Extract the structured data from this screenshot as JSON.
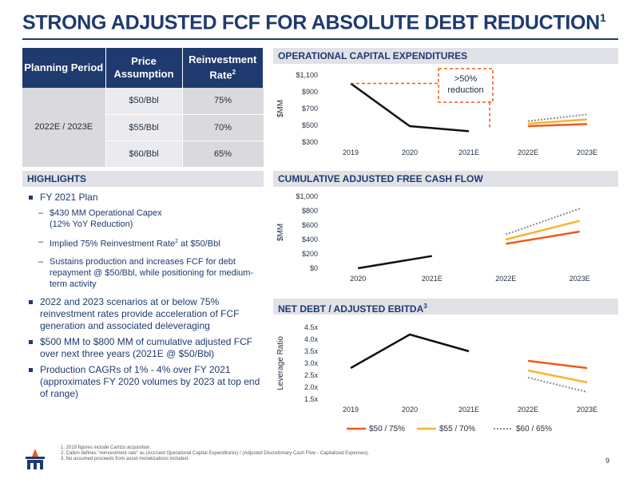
{
  "title": "STRONG ADJUSTED FCF FOR ABSOLUTE DEBT REDUCTION",
  "title_footnote": "1",
  "table": {
    "headers": [
      "Planning Period",
      "Price Assumption",
      "Reinvestment Rate"
    ],
    "rate_footnote": "2",
    "period": "2022E / 2023E",
    "rows": [
      {
        "price": "$50/Bbl",
        "rate": "75%"
      },
      {
        "price": "$55/Bbl",
        "rate": "70%"
      },
      {
        "price": "$60/Bbl",
        "rate": "65%"
      }
    ]
  },
  "highlights": {
    "heading": "HIGHLIGHTS",
    "b1": "FY 2021 Plan",
    "s1": "$430 MM Operational Capex",
    "s1b": "(12% YoY Reduction)",
    "s2a": "Implied 75% Reinvestment Rate",
    "s2sup": "2",
    "s2b": " at $50/Bbl",
    "s3": "Sustains production and increases FCF for debt repayment @ $50/Bbl, while positioning for medium-term activity",
    "b2": "2022 and 2023 scenarios at or below 75% reinvestment rates provide acceleration of FCF generation and associated deleveraging",
    "b3": "$500 MM to $800 MM of cumulative adjusted FCF over next three years (2021E @ $50/Bbl)",
    "b4": "Production CAGRs of 1% - 4% over FY 2021 (approximates FY 2020 volumes by 2023 at top end of range)"
  },
  "colors": {
    "navy": "#1f3a6e",
    "actual": "#111111",
    "s50": "#f05a1a",
    "s55": "#f9b233",
    "s60": "#8c8c8c",
    "annotation": "#f05a1a"
  },
  "chart_data": [
    {
      "type": "line",
      "title": "OPERATIONAL CAPITAL EXPENDITURES",
      "ylabel": "$MM",
      "categories": [
        "2019",
        "2020",
        "2021E",
        "2022E",
        "2023E"
      ],
      "ylim": [
        300,
        1100
      ],
      "yticks": [
        "$300",
        "$500",
        "$700",
        "$900",
        "$1,100"
      ],
      "annotation": {
        "line1": ">50%",
        "line2": "reduction"
      },
      "series": [
        {
          "name": "",
          "values": [
            1000,
            490,
            430,
            null,
            null
          ]
        },
        {
          "name": "$50 / 75%",
          "values": [
            null,
            null,
            null,
            490,
            515
          ]
        },
        {
          "name": "$55 / 70%",
          "values": [
            null,
            null,
            null,
            520,
            570
          ]
        },
        {
          "name": "$60 / 65%",
          "values": [
            null,
            null,
            null,
            550,
            630
          ]
        }
      ]
    },
    {
      "type": "line",
      "title": "CUMULATIVE ADJUSTED FREE CASH FLOW",
      "ylabel": "$MM",
      "categories": [
        "2020",
        "2021E",
        "2022E",
        "2023E"
      ],
      "ylim": [
        0,
        1000
      ],
      "yticks": [
        "$0",
        "$200",
        "$400",
        "$600",
        "$800",
        "$1,000"
      ],
      "series": [
        {
          "name": "",
          "values": [
            0,
            170,
            null,
            null
          ]
        },
        {
          "name": "$50 / 75%",
          "values": [
            null,
            null,
            340,
            510
          ]
        },
        {
          "name": "$55 / 70%",
          "values": [
            null,
            null,
            400,
            660
          ]
        },
        {
          "name": "$60 / 65%",
          "values": [
            null,
            null,
            470,
            830
          ]
        }
      ]
    },
    {
      "type": "line",
      "title": "NET DEBT / ADJUSTED EBITDA",
      "title_footnote": "3",
      "ylabel": "Leverage Ratio",
      "categories": [
        "2019",
        "2020",
        "2021E",
        "2022E",
        "2023E"
      ],
      "ylim": [
        1.5,
        4.5
      ],
      "yticks": [
        "1.5x",
        "2.0x",
        "2.5x",
        "3.0x",
        "3.5x",
        "4.0x",
        "4.5x"
      ],
      "series": [
        {
          "name": "",
          "values": [
            2.8,
            4.2,
            3.5,
            null,
            null
          ]
        },
        {
          "name": "$50 / 75%",
          "values": [
            null,
            null,
            null,
            3.1,
            2.8
          ]
        },
        {
          "name": "$55 / 70%",
          "values": [
            null,
            null,
            null,
            2.7,
            2.2
          ]
        },
        {
          "name": "$60 / 65%",
          "values": [
            null,
            null,
            null,
            2.4,
            1.8
          ]
        }
      ]
    }
  ],
  "legend": [
    "$50 / 75%",
    "$55 / 70%",
    "$60 / 65%"
  ],
  "footnotes": [
    "1.  2019 figures include Carrizo acquisition.",
    "2.  Callon defines \"reinvestment rate\" as (Accrued Operational Capital Expenditures) / (Adjusted Discretionary Cash Flow - Capitalized Expenses).",
    "3.  No assumed proceeds from asset monetizations included."
  ],
  "page_number": "9"
}
